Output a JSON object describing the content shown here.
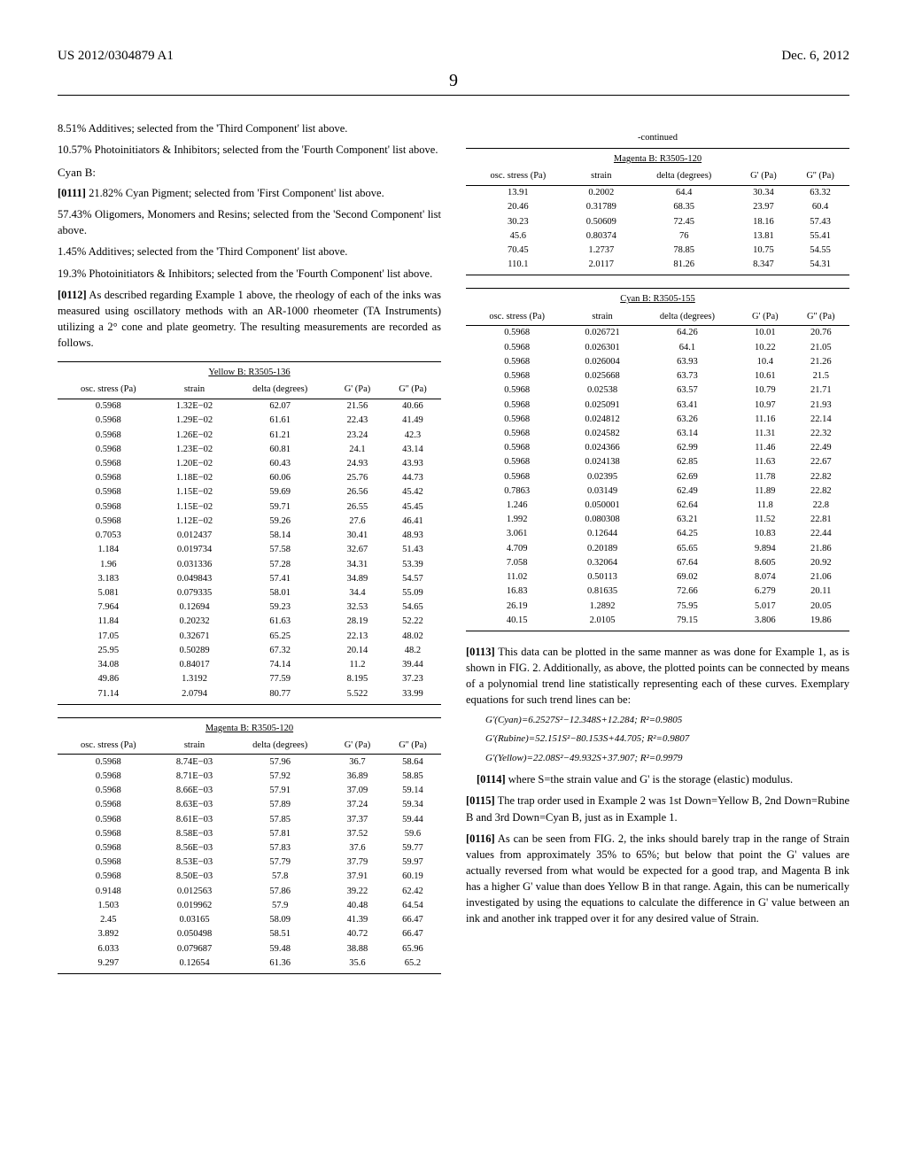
{
  "header": {
    "left": "US 2012/0304879 A1",
    "right": "Dec. 6, 2012"
  },
  "page_number": "9",
  "left_column": {
    "pre_text": [
      "8.51% Additives; selected from the 'Third Component' list above.",
      "10.57% Photoinitiators & Inhibitors; selected from the 'Fourth Component' list above."
    ],
    "subhead": "Cyan B:",
    "p0111_num": "[0111]",
    "p0111_text": "  21.82% Cyan Pigment; selected from 'First Component' list above.",
    "p0111_lines": [
      "57.43% Oligomers, Monomers and Resins; selected from the 'Second Component' list above.",
      "1.45% Additives; selected from the 'Third Component' list above.",
      "19.3% Photoinitiators & Inhibitors; selected from the 'Fourth Component' list above."
    ],
    "p0112_num": "[0112]",
    "p0112_text": "  As described regarding Example 1 above, the rheology of each of the inks was measured using oscillatory methods with an AR-1000 rheometer (TA Instruments) utilizing a 2° cone and plate geometry. The resulting measurements are recorded as follows."
  },
  "tables": {
    "cols": [
      "osc. stress (Pa)",
      "strain",
      "delta (degrees)",
      "G' (Pa)",
      "G'' (Pa)"
    ],
    "yellow": {
      "title": "Yellow B: R3505-136",
      "rows": [
        [
          "0.5968",
          "1.32E−02",
          "62.07",
          "21.56",
          "40.66"
        ],
        [
          "0.5968",
          "1.29E−02",
          "61.61",
          "22.43",
          "41.49"
        ],
        [
          "0.5968",
          "1.26E−02",
          "61.21",
          "23.24",
          "42.3"
        ],
        [
          "0.5968",
          "1.23E−02",
          "60.81",
          "24.1",
          "43.14"
        ],
        [
          "0.5968",
          "1.20E−02",
          "60.43",
          "24.93",
          "43.93"
        ],
        [
          "0.5968",
          "1.18E−02",
          "60.06",
          "25.76",
          "44.73"
        ],
        [
          "0.5968",
          "1.15E−02",
          "59.69",
          "26.56",
          "45.42"
        ],
        [
          "0.5968",
          "1.15E−02",
          "59.71",
          "26.55",
          "45.45"
        ],
        [
          "0.5968",
          "1.12E−02",
          "59.26",
          "27.6",
          "46.41"
        ],
        [
          "0.7053",
          "0.012437",
          "58.14",
          "30.41",
          "48.93"
        ],
        [
          "1.184",
          "0.019734",
          "57.58",
          "32.67",
          "51.43"
        ],
        [
          "1.96",
          "0.031336",
          "57.28",
          "34.31",
          "53.39"
        ],
        [
          "3.183",
          "0.049843",
          "57.41",
          "34.89",
          "54.57"
        ],
        [
          "5.081",
          "0.079335",
          "58.01",
          "34.4",
          "55.09"
        ],
        [
          "7.964",
          "0.12694",
          "59.23",
          "32.53",
          "54.65"
        ],
        [
          "11.84",
          "0.20232",
          "61.63",
          "28.19",
          "52.22"
        ],
        [
          "17.05",
          "0.32671",
          "65.25",
          "22.13",
          "48.02"
        ],
        [
          "25.95",
          "0.50289",
          "67.32",
          "20.14",
          "48.2"
        ],
        [
          "34.08",
          "0.84017",
          "74.14",
          "11.2",
          "39.44"
        ],
        [
          "49.86",
          "1.3192",
          "77.59",
          "8.195",
          "37.23"
        ],
        [
          "71.14",
          "2.0794",
          "80.77",
          "5.522",
          "33.99"
        ]
      ]
    },
    "magenta_left": {
      "title": "Magenta B: R3505-120",
      "rows": [
        [
          "0.5968",
          "8.74E−03",
          "57.96",
          "36.7",
          "58.64"
        ],
        [
          "0.5968",
          "8.71E−03",
          "57.92",
          "36.89",
          "58.85"
        ],
        [
          "0.5968",
          "8.66E−03",
          "57.91",
          "37.09",
          "59.14"
        ],
        [
          "0.5968",
          "8.63E−03",
          "57.89",
          "37.24",
          "59.34"
        ],
        [
          "0.5968",
          "8.61E−03",
          "57.85",
          "37.37",
          "59.44"
        ],
        [
          "0.5968",
          "8.58E−03",
          "57.81",
          "37.52",
          "59.6"
        ],
        [
          "0.5968",
          "8.56E−03",
          "57.83",
          "37.6",
          "59.77"
        ],
        [
          "0.5968",
          "8.53E−03",
          "57.79",
          "37.79",
          "59.97"
        ],
        [
          "0.5968",
          "8.50E−03",
          "57.8",
          "37.91",
          "60.19"
        ],
        [
          "0.9148",
          "0.012563",
          "57.86",
          "39.22",
          "62.42"
        ],
        [
          "1.503",
          "0.019962",
          "57.9",
          "40.48",
          "64.54"
        ],
        [
          "2.45",
          "0.03165",
          "58.09",
          "41.39",
          "66.47"
        ],
        [
          "3.892",
          "0.050498",
          "58.51",
          "40.72",
          "66.47"
        ],
        [
          "6.033",
          "0.079687",
          "59.48",
          "38.88",
          "65.96"
        ],
        [
          "9.297",
          "0.12654",
          "61.36",
          "35.6",
          "65.2"
        ]
      ]
    },
    "magenta_right": {
      "title": "Magenta B: R3505-120",
      "continued": "-continued",
      "rows": [
        [
          "13.91",
          "0.2002",
          "64.4",
          "30.34",
          "63.32"
        ],
        [
          "20.46",
          "0.31789",
          "68.35",
          "23.97",
          "60.4"
        ],
        [
          "30.23",
          "0.50609",
          "72.45",
          "18.16",
          "57.43"
        ],
        [
          "45.6",
          "0.80374",
          "76",
          "13.81",
          "55.41"
        ],
        [
          "70.45",
          "1.2737",
          "78.85",
          "10.75",
          "54.55"
        ],
        [
          "110.1",
          "2.0117",
          "81.26",
          "8.347",
          "54.31"
        ]
      ]
    },
    "cyan": {
      "title": "Cyan B: R3505-155",
      "rows": [
        [
          "0.5968",
          "0.026721",
          "64.26",
          "10.01",
          "20.76"
        ],
        [
          "0.5968",
          "0.026301",
          "64.1",
          "10.22",
          "21.05"
        ],
        [
          "0.5968",
          "0.026004",
          "63.93",
          "10.4",
          "21.26"
        ],
        [
          "0.5968",
          "0.025668",
          "63.73",
          "10.61",
          "21.5"
        ],
        [
          "0.5968",
          "0.02538",
          "63.57",
          "10.79",
          "21.71"
        ],
        [
          "0.5968",
          "0.025091",
          "63.41",
          "10.97",
          "21.93"
        ],
        [
          "0.5968",
          "0.024812",
          "63.26",
          "11.16",
          "22.14"
        ],
        [
          "0.5968",
          "0.024582",
          "63.14",
          "11.31",
          "22.32"
        ],
        [
          "0.5968",
          "0.024366",
          "62.99",
          "11.46",
          "22.49"
        ],
        [
          "0.5968",
          "0.024138",
          "62.85",
          "11.63",
          "22.67"
        ],
        [
          "0.5968",
          "0.02395",
          "62.69",
          "11.78",
          "22.82"
        ],
        [
          "0.7863",
          "0.03149",
          "62.49",
          "11.89",
          "22.82"
        ],
        [
          "1.246",
          "0.050001",
          "62.64",
          "11.8",
          "22.8"
        ],
        [
          "1.992",
          "0.080308",
          "63.21",
          "11.52",
          "22.81"
        ],
        [
          "3.061",
          "0.12644",
          "64.25",
          "10.83",
          "22.44"
        ],
        [
          "4.709",
          "0.20189",
          "65.65",
          "9.894",
          "21.86"
        ],
        [
          "7.058",
          "0.32064",
          "67.64",
          "8.605",
          "20.92"
        ],
        [
          "11.02",
          "0.50113",
          "69.02",
          "8.074",
          "21.06"
        ],
        [
          "16.83",
          "0.81635",
          "72.66",
          "6.279",
          "20.11"
        ],
        [
          "26.19",
          "1.2892",
          "75.95",
          "5.017",
          "20.05"
        ],
        [
          "40.15",
          "2.0105",
          "79.15",
          "3.806",
          "19.86"
        ]
      ]
    }
  },
  "right_column": {
    "p0113_num": "[0113]",
    "p0113_text": "  This data can be plotted in the same manner as was done for Example 1, as is shown in FIG. 2. Additionally, as above, the plotted points can be connected by means of a polynomial trend line statistically representing each of these curves. Exemplary equations for such trend lines can be:",
    "eq1": "G'(Cyan)=6.2527S²−12.348S+12.284; R²=0.9805",
    "eq2": "G'(Rubine)=52.151S²−80.153S+44.705; R²=0.9807",
    "eq3": "G'(Yellow)=22.08S²−49.932S+37.907; R²=0.9979",
    "p0114_num": "[0114]",
    "p0114_text": "  where S=the strain value and G' is the storage (elastic) modulus.",
    "p0115_num": "[0115]",
    "p0115_text": "  The trap order used in Example 2 was 1st Down=Yellow B, 2nd Down=Rubine B and 3rd Down=Cyan B, just as in Example 1.",
    "p0116_num": "[0116]",
    "p0116_text": "  As can be seen from FIG. 2, the inks should barely trap in the range of Strain values from approximately 35% to 65%; but below that point the G' values are actually reversed from what would be expected for a good trap, and Magenta B ink has a higher G' value than does Yellow B in that range. Again, this can be numerically investigated by using the equations to calculate the difference in G' value between an ink and another ink trapped over it for any desired value of Strain."
  }
}
